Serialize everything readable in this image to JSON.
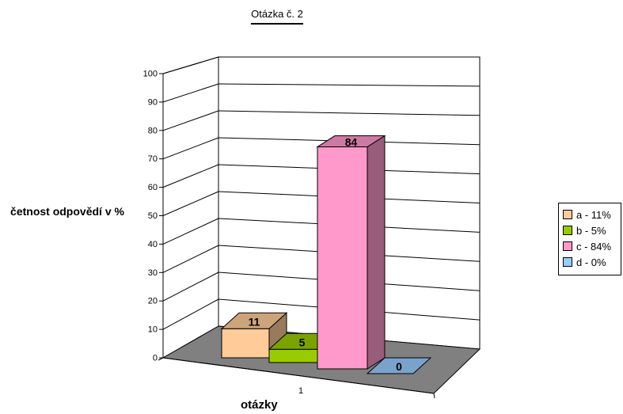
{
  "chart_data": {
    "type": "bar",
    "title": "Otázka č. 2",
    "xlabel": "otázky",
    "ylabel": "četnost odpovědí v %",
    "categories": [
      "1"
    ],
    "ylim": [
      0,
      100
    ],
    "yticks": [
      "0",
      "10",
      "20",
      "30",
      "40",
      "50",
      "60",
      "70",
      "80",
      "90",
      "100"
    ],
    "grid": true,
    "legend_position": "right",
    "series": [
      {
        "name": "a - 11%",
        "values": [
          11
        ],
        "color": "#ffcc99"
      },
      {
        "name": "b - 5%",
        "values": [
          5
        ],
        "color": "#99cc00"
      },
      {
        "name": "c - 84%",
        "values": [
          84
        ],
        "color": "#ff99cc"
      },
      {
        "name": "d - 0%",
        "values": [
          0
        ],
        "color": "#99ccff"
      }
    ],
    "data_labels": [
      "11",
      "5",
      "84",
      "0"
    ]
  }
}
